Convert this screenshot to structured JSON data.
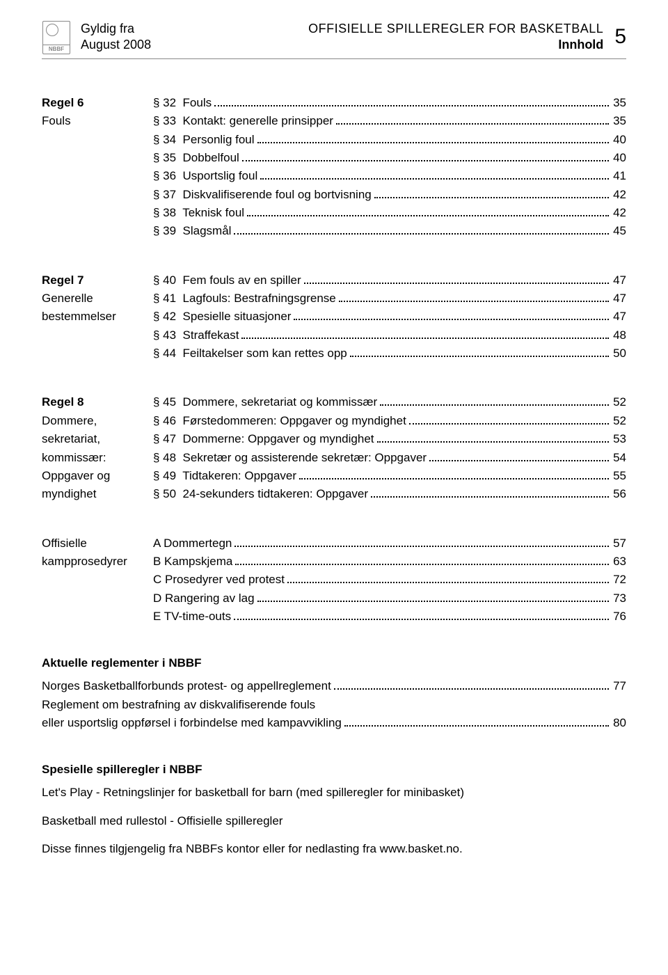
{
  "header": {
    "valid_from_label": "Gyldig fra",
    "valid_from_date": "August 2008",
    "title_line1": "OFFISIELLE SPILLEREGLER FOR BASKETBALL",
    "title_line2": "Innhold",
    "page_number": "5",
    "logo_text": "NBBF"
  },
  "sections": [
    {
      "left": [
        "Regel 6",
        "Fouls"
      ],
      "left_bold": [
        true,
        false
      ],
      "items": [
        {
          "label": "§ 32  Fouls",
          "page": "35"
        },
        {
          "label": "§ 33  Kontakt: generelle prinsipper",
          "page": "35"
        },
        {
          "label": "§ 34  Personlig foul",
          "page": "40"
        },
        {
          "label": "§ 35  Dobbelfoul",
          "page": "40"
        },
        {
          "label": "§ 36  Usportslig foul",
          "page": "41"
        },
        {
          "label": "§ 37  Diskvalifiserende foul og bortvisning",
          "page": "42"
        },
        {
          "label": "§ 38  Teknisk foul",
          "page": "42"
        },
        {
          "label": "§ 39  Slagsmål",
          "page": "45"
        }
      ]
    },
    {
      "left": [
        "Regel 7",
        "Generelle",
        "bestemmelser"
      ],
      "left_bold": [
        true,
        false,
        false
      ],
      "items": [
        {
          "label": "§ 40  Fem fouls av en spiller",
          "page": "47"
        },
        {
          "label": "§ 41  Lagfouls: Bestrafningsgrense",
          "page": "47"
        },
        {
          "label": "§ 42  Spesielle situasjoner",
          "page": "47"
        },
        {
          "label": "§ 43  Straffekast",
          "page": "48"
        },
        {
          "label": "§ 44  Feiltakelser som kan rettes opp",
          "page": "50"
        }
      ]
    },
    {
      "left": [
        "Regel 8",
        "Dommere,",
        "sekretariat,",
        "kommissær:",
        "Oppgaver og",
        "myndighet"
      ],
      "left_bold": [
        true,
        false,
        false,
        false,
        false,
        false
      ],
      "items": [
        {
          "label": "§ 45  Dommere, sekretariat og kommissær",
          "page": "52"
        },
        {
          "label": "§ 46  Førstedommeren: Oppgaver og myndighet",
          "page": "52"
        },
        {
          "label": "§ 47  Dommerne: Oppgaver og myndighet",
          "page": "53"
        },
        {
          "label": "§ 48  Sekretær og assisterende sekretær: Oppgaver",
          "page": "54"
        },
        {
          "label": "§ 49  Tidtakeren: Oppgaver",
          "page": "55"
        },
        {
          "label": "§ 50  24-sekunders tidtakeren: Oppgaver",
          "page": "56"
        }
      ]
    },
    {
      "left": [
        "Offisielle",
        "kampprosedyrer"
      ],
      "left_bold": [
        false,
        false
      ],
      "items": [
        {
          "label": "A Dommertegn",
          "page": "57"
        },
        {
          "label": "B Kampskjema",
          "page": "63"
        },
        {
          "label": "C Prosedyrer ved protest",
          "page": "72"
        },
        {
          "label": "D Rangering av lag",
          "page": "73"
        },
        {
          "label": "E TV-time-outs",
          "page": "76"
        }
      ]
    }
  ],
  "aktuelle": {
    "heading": "Aktuelle reglementer i NBBF",
    "items": [
      {
        "label": "Norges Basketballforbunds protest- og appellreglement",
        "page": "77"
      },
      {
        "label_multi": [
          "Reglement om bestrafning av diskvalifiserende fouls",
          "eller usportslig oppførsel i forbindelse med kampavvikling"
        ],
        "page": "80"
      }
    ]
  },
  "spesielle": {
    "heading": "Spesielle spilleregler i NBBF",
    "lines": [
      "Let's Play - Retningslinjer for basketball for barn (med spilleregler for minibasket)",
      "Basketball med rullestol - Offisielle spilleregler",
      "Disse finnes tilgjengelig fra NBBFs kontor eller for nedlasting fra www.basket.no."
    ]
  }
}
